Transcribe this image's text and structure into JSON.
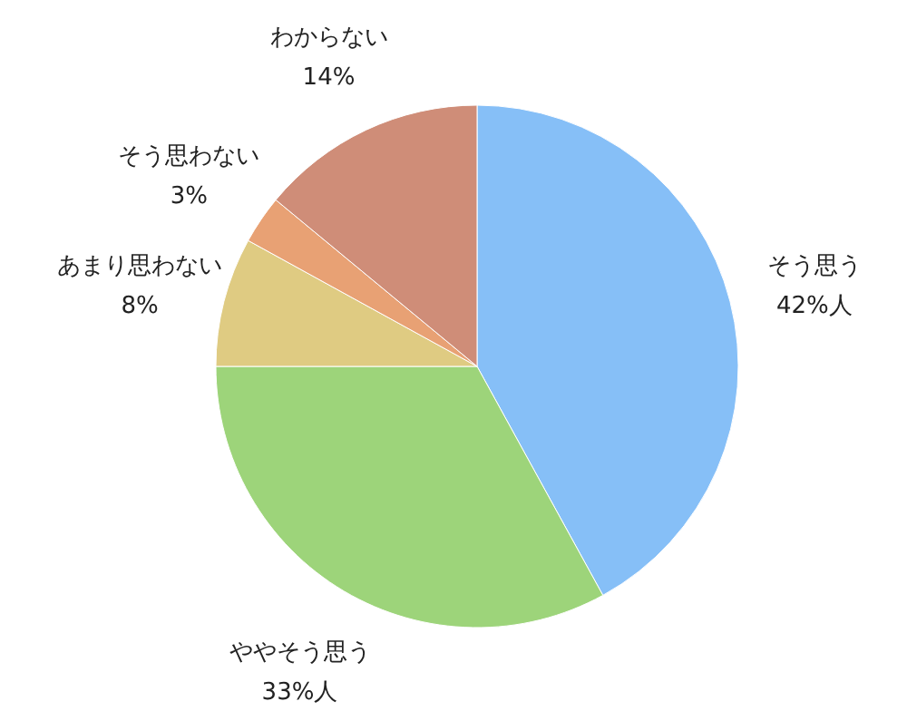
{
  "chart_data": {
    "type": "pie",
    "categories": [
      "そう思う",
      "ややそう思う",
      "あまり思わない",
      "そう思わない",
      "わからない"
    ],
    "values": [
      42,
      33,
      8,
      3,
      14
    ],
    "value_labels": [
      "42%人",
      "33%人",
      "8%",
      "3%",
      "14%"
    ],
    "colors": [
      "#86bff7",
      "#9dd47a",
      "#dfcb82",
      "#e8a174",
      "#cf8d78"
    ]
  }
}
